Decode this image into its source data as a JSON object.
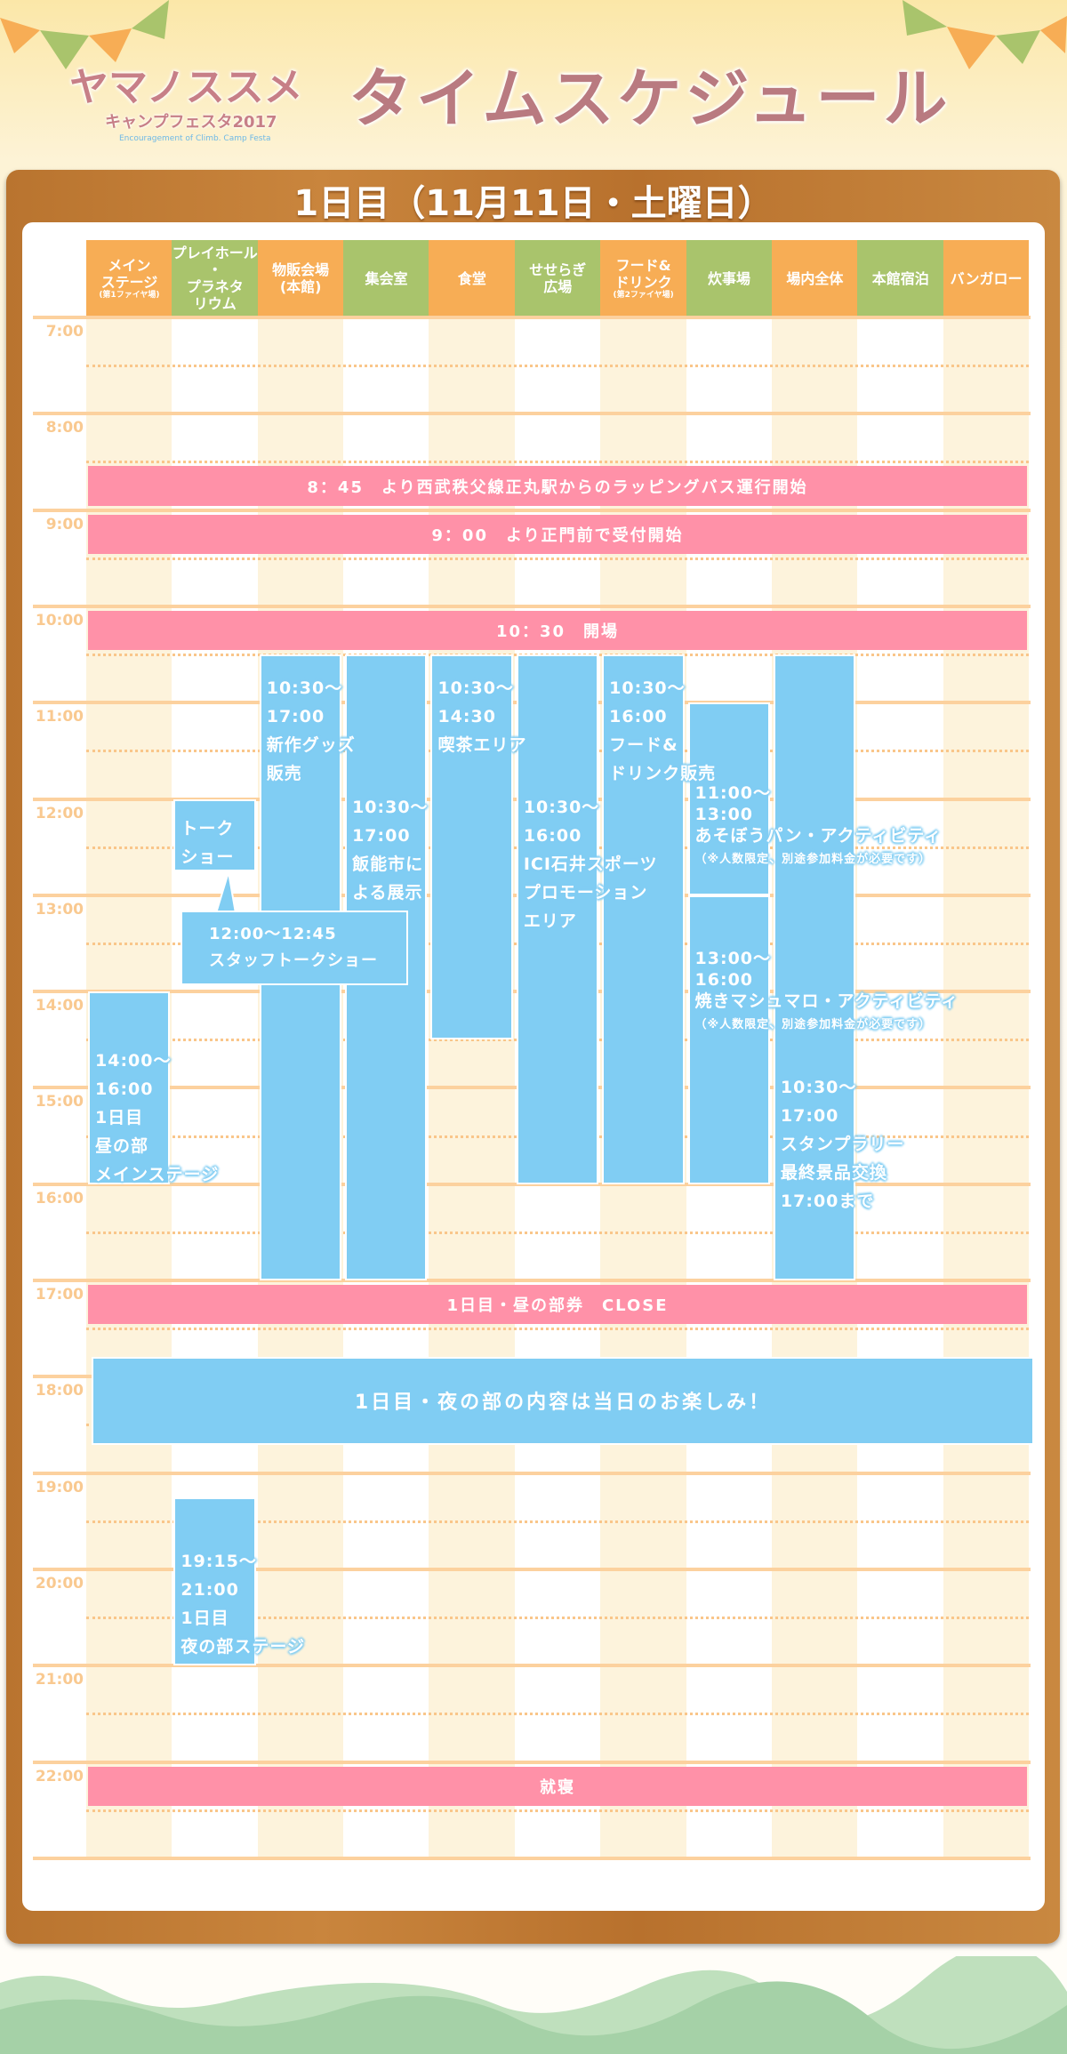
{
  "header": {
    "logo_main": "ヤマノススメ",
    "logo_sub": "キャンプフェスタ2017",
    "logo_en": "Encouragement of Climb. Camp Festa",
    "title": "タイムスケジュール",
    "day_title": "1日目（11月11日・土曜日）"
  },
  "colors": {
    "orange": "#f7ad55",
    "green": "#a9c46c",
    "pink": "#ff91a8",
    "blue": "#80cdf3",
    "wood": "#c07c36"
  },
  "columns": [
    {
      "label": "メイン\nステージ",
      "sub": "(第1ファイヤ場)",
      "color": "orange"
    },
    {
      "label": "プレイホール\n・\nプラネタ\nリウム",
      "color": "green"
    },
    {
      "label": "物販会場\n(本館)",
      "color": "orange"
    },
    {
      "label": "集会室",
      "color": "green"
    },
    {
      "label": "食堂",
      "color": "orange"
    },
    {
      "label": "せせらぎ\n広場",
      "color": "green"
    },
    {
      "label": "フード&\nドリンク",
      "sub": "(第2ファイヤ場)",
      "color": "orange"
    },
    {
      "label": "炊事場",
      "color": "green"
    },
    {
      "label": "場内全体",
      "color": "orange"
    },
    {
      "label": "本館宿泊",
      "color": "green"
    },
    {
      "label": "バンガロー",
      "color": "orange"
    }
  ],
  "hours": [
    "7:00",
    "8:00",
    "9:00",
    "10:00",
    "11:00",
    "12:00",
    "13:00",
    "14:00",
    "15:00",
    "16:00",
    "17:00",
    "18:00",
    "19:00",
    "20:00",
    "21:00",
    "22:00"
  ],
  "events": [
    {
      "kind": "pink",
      "col": 1,
      "span": 11,
      "start": 8.5,
      "end": 9.0,
      "text": "8：45　より西武秩父線正丸駅からのラッピングバス運行開始"
    },
    {
      "kind": "pink",
      "col": 1,
      "span": 11,
      "start": 9.0,
      "end": 9.5,
      "text": "9：00　より正門前で受付開始"
    },
    {
      "kind": "pink",
      "col": 1,
      "span": 11,
      "start": 10.0,
      "end": 10.5,
      "text": "10：30　開場"
    },
    {
      "kind": "blue",
      "col": 3,
      "span": 1,
      "start": 10.5,
      "end": 17.0,
      "text": "10:30〜\n17:00\n新作グッズ\n販売"
    },
    {
      "kind": "blue",
      "col": 4,
      "span": 1,
      "start": 10.5,
      "end": 17.0,
      "text": "\n\n10:30〜\n17:00\n飯能市に\nよる展示"
    },
    {
      "kind": "blue",
      "col": 5,
      "span": 1,
      "start": 10.5,
      "end": 14.5,
      "text": "10:30〜\n14:30\n喫茶エリア"
    },
    {
      "kind": "blue",
      "col": 6,
      "span": 1,
      "start": 10.5,
      "end": 16.0,
      "text": "\n\n10:30〜\n16:00\nICI石井スポーツ\nプロモーション\nエリア"
    },
    {
      "kind": "blue",
      "col": 7,
      "span": 1,
      "start": 10.5,
      "end": 16.0,
      "text": "10:30〜\n16:00\nフード&\nドリンク販売"
    },
    {
      "kind": "blue",
      "col": 8,
      "span": 1,
      "start": 11.0,
      "end": 13.0,
      "text": "11:00〜\n13:00\nあそぼうパン・アクティビティ",
      "note": "（※人数限定、別途参加料金が必要です）"
    },
    {
      "kind": "blue",
      "col": 8,
      "span": 1,
      "start": 13.0,
      "end": 16.0,
      "text": "13:00〜\n16:00\n焼きマシュマロ・アクティビティ",
      "note": "（※人数限定、別途参加料金が必要です）"
    },
    {
      "kind": "blue",
      "col": 9,
      "span": 1,
      "start": 10.5,
      "end": 17.0,
      "text": "\n\n\n\n\n\n\n\n\n10:30〜\n17:00\nスタンプラリー\n最終景品交換\n17:00まで"
    },
    {
      "kind": "blue",
      "col": 1,
      "span": 1,
      "start": 14.0,
      "end": 16.0,
      "text": "14:00〜\n16:00\n1日目\n昼の部\nメインステージ"
    },
    {
      "kind": "blue",
      "col": 2,
      "span": 1,
      "start": 12.0,
      "end": 12.75,
      "text": "トーク\nショー"
    },
    {
      "kind": "pink",
      "col": 1,
      "span": 11,
      "start": 17.0,
      "end": 17.5,
      "text": "1日目・昼の部券　CLOSE"
    },
    {
      "kind": "night",
      "col": 1,
      "span": 11,
      "start": 17.75,
      "end": 18.75,
      "text": "1日目・夜の部の内容は当日のお楽しみ！"
    },
    {
      "kind": "blue",
      "col": 2,
      "span": 1,
      "start": 19.25,
      "end": 21.0,
      "text": "\n19:15〜\n21:00\n1日目\n夜の部ステージ"
    },
    {
      "kind": "pink",
      "col": 1,
      "span": 11,
      "start": 22.0,
      "end": 22.5,
      "text": "就寝"
    }
  ],
  "callout": {
    "text": "12:00〜12:45\nスタッフトークショー"
  }
}
